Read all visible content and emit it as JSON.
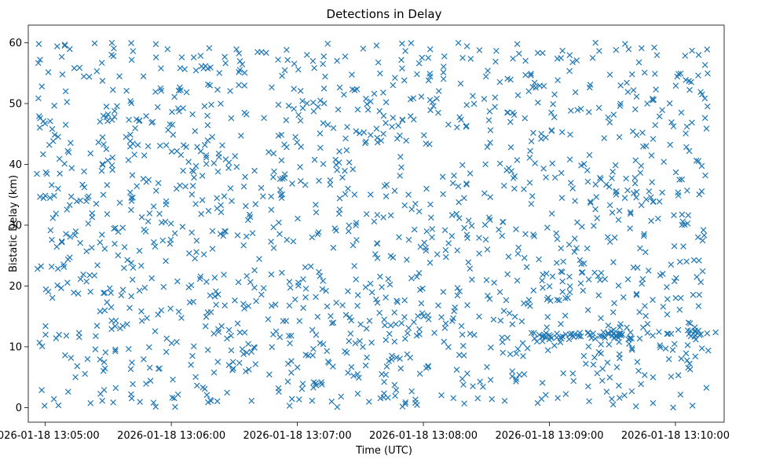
{
  "chart_data": {
    "type": "scatter",
    "title": "Detections in Delay",
    "xlabel": "Time (UTC)",
    "ylabel": "Bistatic Delay (km)",
    "marker": "x",
    "color": "#1f77b4",
    "xlim_seconds": [
      -4.1,
      327.2
    ],
    "ylim": [
      -2.4,
      62.9
    ],
    "x_origin": "2026-01-18 13:04:56",
    "x_ticks": [
      {
        "seconds": 4,
        "label": "2026-01-18 13:05:00"
      },
      {
        "seconds": 64,
        "label": "2026-01-18 13:06:00"
      },
      {
        "seconds": 124,
        "label": "2026-01-18 13:07:00"
      },
      {
        "seconds": 184,
        "label": "2026-01-18 13:08:00"
      },
      {
        "seconds": 244,
        "label": "2026-01-18 13:09:00"
      },
      {
        "seconds": 304,
        "label": "2026-01-18 13:10:00"
      }
    ],
    "y_ticks": [
      0,
      10,
      20,
      30,
      40,
      50,
      60
    ],
    "series": [
      {
        "name": "detections",
        "x_range_seconds": [
          0,
          320
        ],
        "y_range": [
          0,
          60
        ],
        "count": 1500,
        "notes": "Dense scatter of radar detections roughly uniformly distributed over time and delay; a clustered horizontal track near 11-12 km appears between about 13:08:50 and 13:09:55."
      }
    ]
  }
}
